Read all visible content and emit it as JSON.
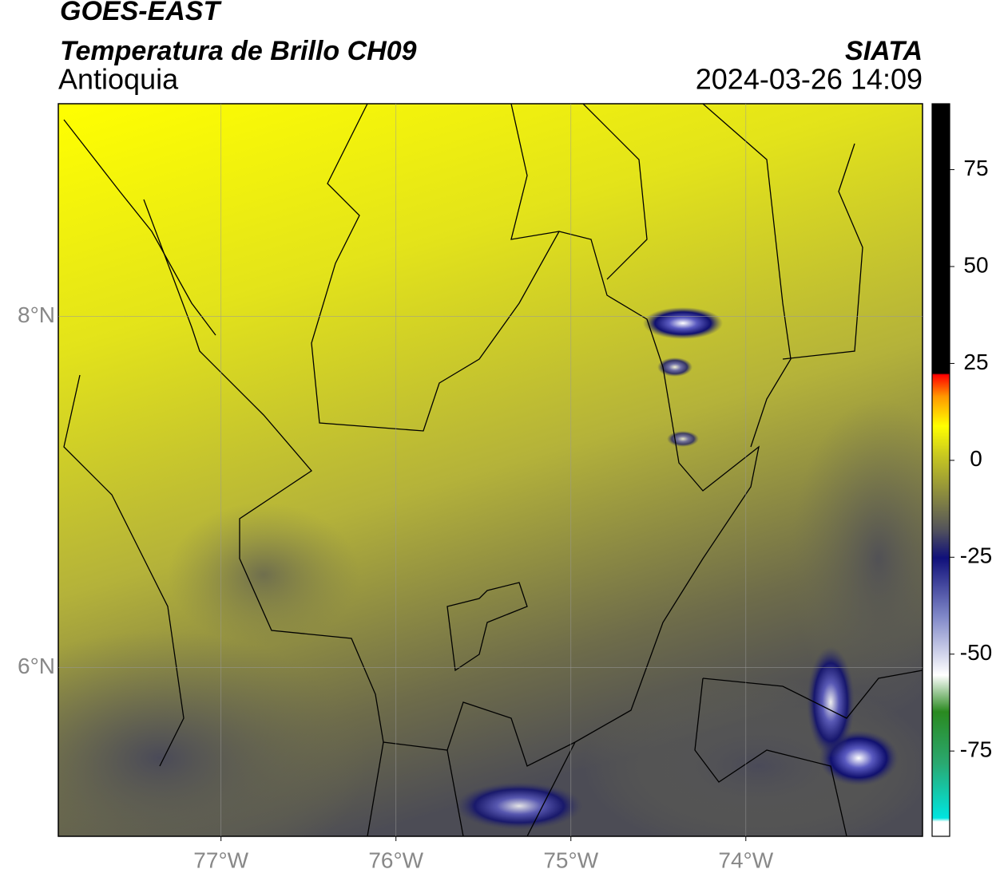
{
  "header": {
    "title": "GOES-EAST",
    "subtitle": "Temperatura de Brillo CH09",
    "region": "Antioquia",
    "source": "SIATA",
    "datetime": "2024-03-26 14:09"
  },
  "map": {
    "lonlim": [
      -77.93,
      -72.99
    ],
    "latlim": [
      5.04,
      9.21
    ],
    "lonticks": [
      {
        "value": -77,
        "label": "77°W"
      },
      {
        "value": -76,
        "label": "76°W"
      },
      {
        "value": -75,
        "label": "75°W"
      },
      {
        "value": -74,
        "label": "74°W"
      }
    ],
    "latticks": [
      {
        "value": 8,
        "label": "8°N"
      },
      {
        "value": 6,
        "label": "6°N"
      }
    ]
  },
  "colorbar": {
    "lim": [
      -97,
      92
    ],
    "ticks": [
      75,
      50,
      25,
      0,
      -25,
      -50,
      -75
    ]
  }
}
